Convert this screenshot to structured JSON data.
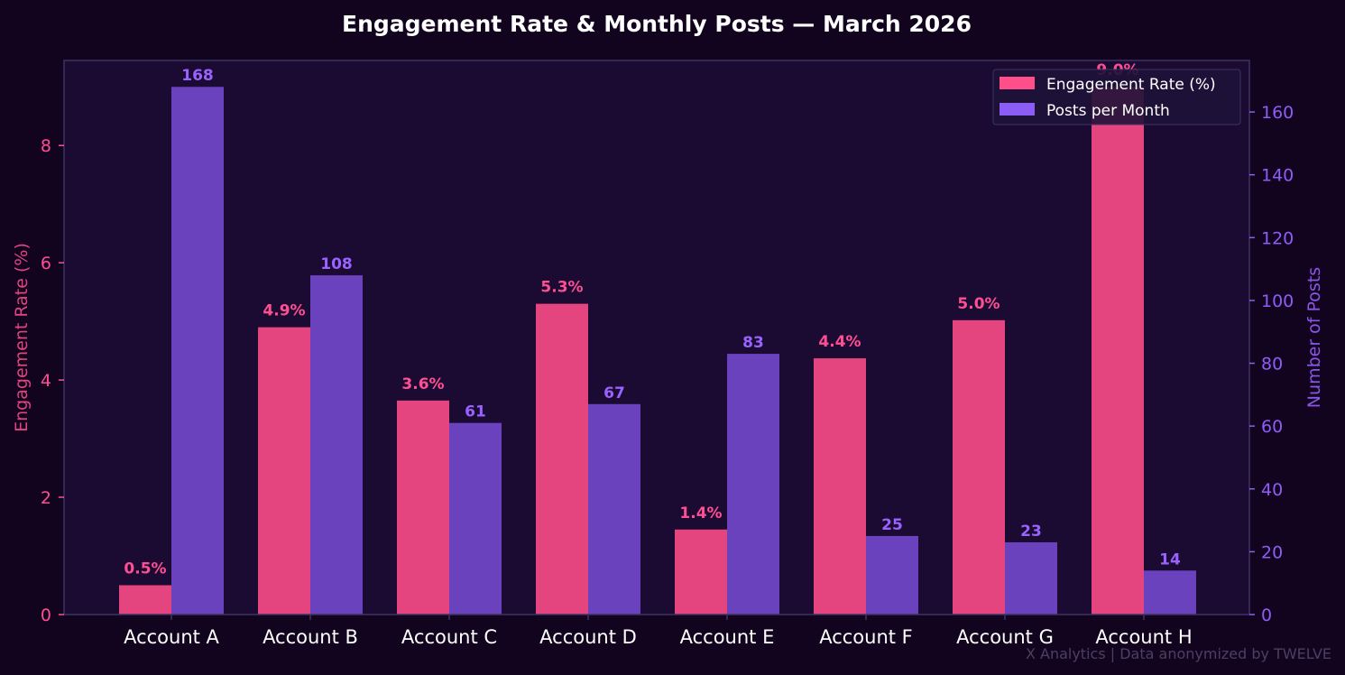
{
  "chart_data": {
    "type": "bar",
    "title": "Engagement Rate & Monthly Posts — March 2026",
    "categories": [
      "Account A",
      "Account B",
      "Account C",
      "Account D",
      "Account E",
      "Account F",
      "Account G",
      "Account H"
    ],
    "series": [
      {
        "name": "Engagement Rate (%)",
        "axis": "left",
        "color": "#e5457f",
        "values": [
          0.5,
          4.9,
          3.65,
          5.3,
          1.45,
          4.37,
          5.02,
          9.0
        ],
        "labels": [
          "0.5%",
          "4.9%",
          "3.6%",
          "5.3%",
          "1.4%",
          "4.4%",
          "5.0%",
          "9.0%"
        ]
      },
      {
        "name": "Posts per Month",
        "axis": "right",
        "color": "#6a42bd",
        "values": [
          168,
          108,
          61,
          67,
          83,
          25,
          23,
          14
        ],
        "labels": [
          "168",
          "108",
          "61",
          "67",
          "83",
          "25",
          "23",
          "14"
        ]
      }
    ],
    "ylabel": "Engagement Rate (%)",
    "ylabel_right": "Number of Posts",
    "ylim": [
      0,
      9.45
    ],
    "ylim_right": [
      0,
      176.4
    ],
    "yticks": [
      0,
      2,
      4,
      6,
      8
    ],
    "yticks_right": [
      0,
      20,
      40,
      60,
      80,
      100,
      120,
      140,
      160
    ],
    "legend": {
      "placement": "top-right",
      "colors": [
        "#ff4f8b",
        "#8b5cf6"
      ]
    },
    "footnote": "X Analytics | Data anonymized by TWELVE",
    "colors": {
      "background": "#12041f",
      "plot_background": "#1b0b33",
      "frame": "#3c3360",
      "left_accent": "#ff4f93",
      "right_accent": "#8f5cf7"
    }
  }
}
